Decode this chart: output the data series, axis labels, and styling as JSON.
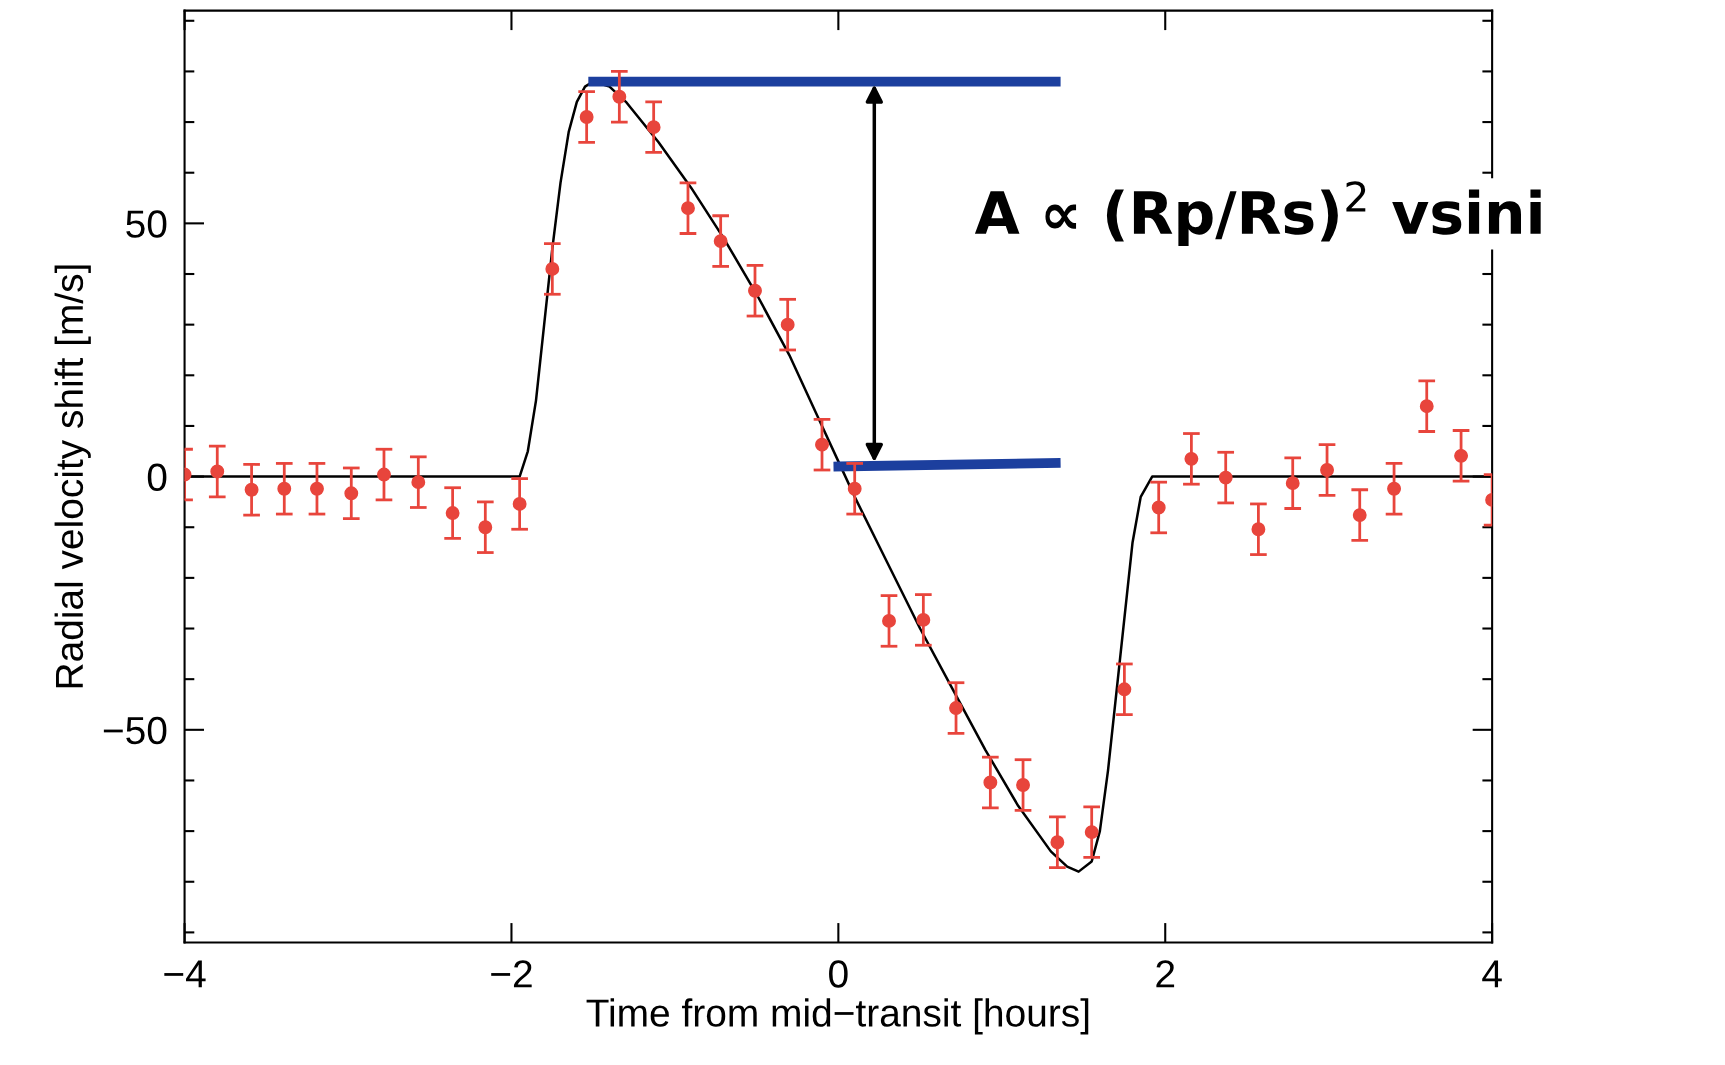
{
  "chart_data": {
    "type": "scatter",
    "xlabel": "Time from mid−transit [hours]",
    "ylabel": "Radial velocity shift [m/s]",
    "xlim": [
      -4,
      4
    ],
    "xticks": [
      {
        "value": -4,
        "label": "−4"
      },
      {
        "value": -2,
        "label": "−2"
      },
      0,
      2,
      4
    ],
    "ylim": [
      -92,
      92
    ],
    "yticks": [
      {
        "value": -90,
        "label": null
      },
      {
        "value": -80,
        "label": null
      },
      {
        "value": -70,
        "label": null
      },
      {
        "value": -60,
        "label": null
      },
      {
        "value": -50,
        "label": "−50"
      },
      {
        "value": -40,
        "label": null
      },
      {
        "value": -30,
        "label": null
      },
      {
        "value": -20,
        "label": null
      },
      {
        "value": -10,
        "label": null
      },
      0,
      {
        "value": 10,
        "label": null
      },
      {
        "value": 20,
        "label": null
      },
      {
        "value": 30,
        "label": null
      },
      {
        "value": 40,
        "label": null
      },
      50,
      {
        "value": 60,
        "label": null
      },
      {
        "value": 70,
        "label": null
      },
      {
        "value": 80,
        "label": null
      },
      {
        "value": 90,
        "label": null
      }
    ],
    "grid": false,
    "legend": false,
    "annotations": [
      "A ∝ (Rp/Rs)$^{2}$ vsini"
    ],
    "series": [
      {
        "type": "line",
        "color": "#000000",
        "x": [
          -4,
          -1.95,
          -1.9,
          -1.85,
          -1.8,
          -1.75,
          -1.7,
          -1.65,
          -1.6,
          -1.55,
          -1.5,
          -1.4,
          -1.3,
          -1.1,
          -0.9,
          -0.7,
          -0.5,
          -0.3,
          -0.1,
          0,
          0.1,
          0.3,
          0.5,
          0.7,
          0.9,
          1.1,
          1.3,
          1.4,
          1.47,
          1.55,
          1.6,
          1.65,
          1.7,
          1.75,
          1.8,
          1.85,
          1.92,
          4
        ],
        "values": [
          0,
          0,
          5,
          15,
          30,
          45,
          58,
          68,
          74,
          77,
          78,
          77,
          74,
          66,
          57,
          47,
          36,
          24,
          10,
          3,
          -4,
          -17,
          -30,
          -42,
          -54,
          -65,
          -74,
          -77,
          -78,
          -76,
          -70,
          -58,
          -43,
          -28,
          -13,
          -4,
          0,
          0
        ]
      },
      {
        "type": "line",
        "color": "#1c3f9e",
        "x": [
          -1.5,
          1.33
        ],
        "values": [
          78,
          78
        ]
      },
      {
        "type": "line",
        "color": "#1c3f9e",
        "x": [
          0,
          1.33
        ],
        "values": [
          2,
          2.7
        ]
      },
      {
        "color": "#e8453c",
        "marker": "circle",
        "x": [
          -4.0,
          -3.8,
          -3.59,
          -3.39,
          -3.19,
          -2.98,
          -2.78,
          -2.57,
          -2.36,
          -2.16,
          -1.95,
          -1.75,
          -1.54,
          -1.34,
          -1.13,
          -0.92,
          -0.72,
          -0.51,
          -0.31,
          -0.1,
          0.1,
          0.31,
          0.52,
          0.72,
          0.93,
          1.13,
          1.34,
          1.55,
          1.75,
          1.96,
          2.16,
          2.37,
          2.57,
          2.78,
          2.99,
          3.19,
          3.4,
          3.6,
          3.81,
          4.0
        ],
        "values": [
          0.4,
          1,
          -2.6,
          -2.4,
          -2.4,
          -3.3,
          0.4,
          -1.1,
          -7.2,
          -10,
          -5.4,
          41,
          71,
          75,
          69,
          53,
          46.5,
          36.7,
          30,
          6.3,
          -2.4,
          -28.5,
          -28.3,
          -45.7,
          -60.4,
          -60.9,
          -72.2,
          -70.2,
          -42,
          -6.1,
          3.5,
          -0.2,
          -10.4,
          -1.3,
          1.3,
          -7.6,
          -2.4,
          13.9,
          4.1,
          -4.6
        ],
        "errors": [
          5,
          5,
          5,
          5,
          5,
          5,
          5,
          5,
          5,
          5,
          5,
          5,
          5,
          5,
          5,
          5,
          5,
          5,
          5,
          5,
          5,
          5,
          5,
          5,
          5,
          5,
          5,
          5,
          5,
          5,
          5,
          5,
          5,
          5,
          5,
          5,
          5,
          5,
          5,
          5
        ]
      }
    ]
  }
}
